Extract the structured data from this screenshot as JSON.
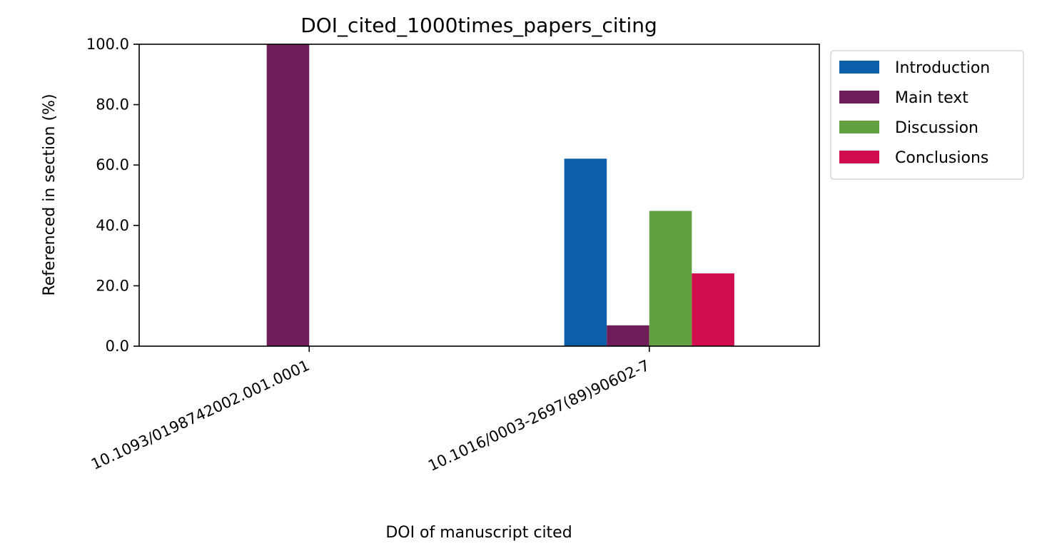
{
  "chart_data": {
    "type": "bar",
    "title": "DOI_cited_1000times_papers_citing",
    "xlabel": "DOI of manuscript cited",
    "ylabel": "Referenced in section (%)",
    "categories": [
      "10.1093/0198742002.001.0001",
      "10.1016/0003-2697(89)90602-7"
    ],
    "series": [
      {
        "name": "Introduction",
        "color": "#0a5fa8",
        "values": [
          0,
          62.1
        ]
      },
      {
        "name": "Main text",
        "color": "#6e1f5a",
        "values": [
          100,
          6.9
        ]
      },
      {
        "name": "Discussion",
        "color": "#62a042",
        "values": [
          0,
          44.8
        ]
      },
      {
        "name": "Conclusions",
        "color": "#d10d4d",
        "values": [
          0,
          24.1
        ]
      }
    ],
    "ylim": [
      0,
      100
    ],
    "yticks": [
      "0.0",
      "20.0",
      "40.0",
      "60.0",
      "80.0",
      "100.0"
    ],
    "legend_position": "outside-top-right",
    "grid": false
  }
}
